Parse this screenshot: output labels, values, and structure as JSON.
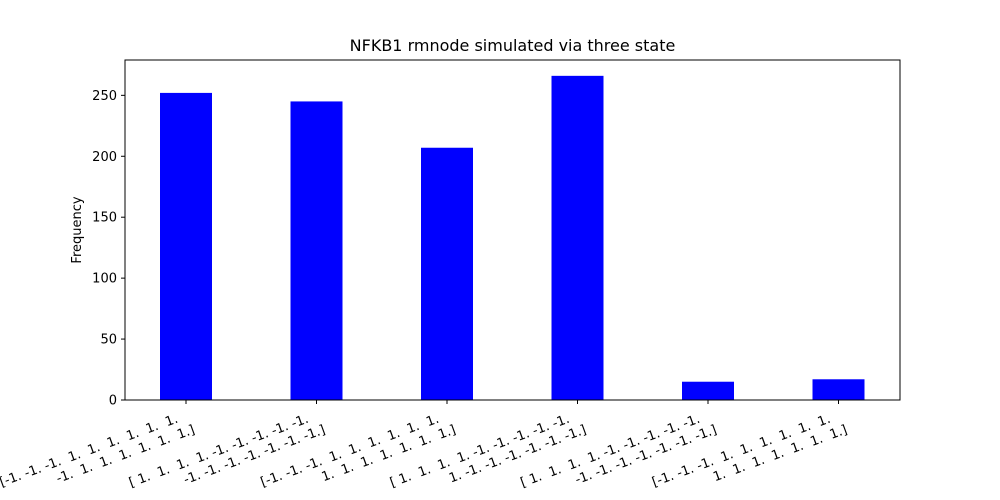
{
  "chart_data": {
    "type": "bar",
    "title": "NFKB1 rmnode simulated via three state",
    "xlabel": "",
    "ylabel": "Frequency",
    "categories": [
      [
        "[-1. -1. -1.  1.  1.  1.  1.  1.  1.",
        " -1.  1.  1.  1.  1.  1.  1.]"
      ],
      [
        "[ 1.  1.  1.  1. -1. -1. -1. -1. -1.",
        " -1. -1. -1. -1. -1. -1. -1.]"
      ],
      [
        "[-1. -1. -1.  1.  1.  1.  1.  1.  1.",
        "  1.  1.  1.  1.  1.  1.  1.]"
      ],
      [
        "[ 1.  1.  1.  1. -1. -1. -1. -1. -1.",
        "  1. -1. -1. -1. -1. -1. -1.]"
      ],
      [
        "[ 1.  1.  1.  1. -1. -1. -1. -1. -1.",
        " -1. -1. -1. -1. -1. -1. -1.]"
      ],
      [
        "[-1. -1. -1.  1.  1.  1.  1.  1.  1.",
        "  1.  1.  1.  1.  1.  1.  1.]"
      ]
    ],
    "values": [
      252,
      245,
      207,
      266,
      15,
      17
    ],
    "ylim": [
      0,
      279
    ],
    "yticks": [
      0,
      50,
      100,
      150,
      200,
      250
    ],
    "bar_color": "#0000ff",
    "grid": false
  }
}
